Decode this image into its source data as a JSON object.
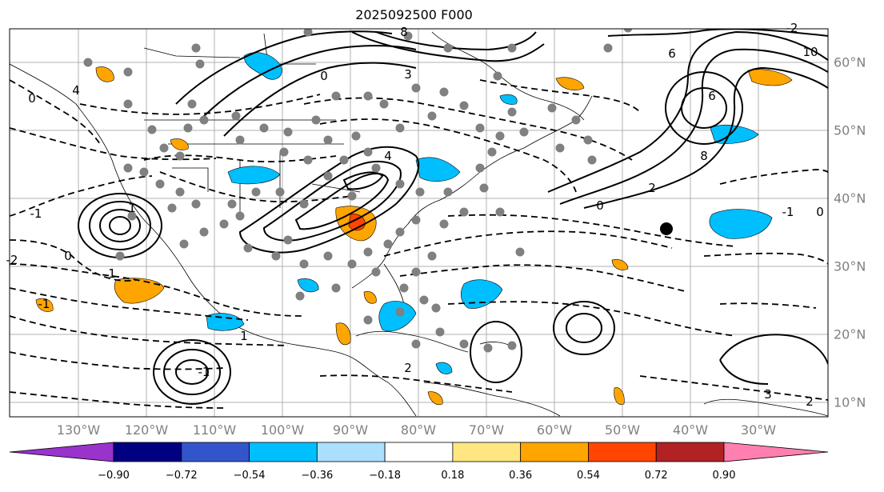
{
  "title": "2025092500 F000",
  "lon_labels": [
    "130°W",
    "120°W",
    "110°W",
    "100°W",
    "90°W",
    "80°W",
    "70°W",
    "60°W",
    "50°W",
    "40°W",
    "30°W"
  ],
  "lat_labels": [
    "60°N",
    "50°N",
    "40°N",
    "30°N",
    "20°N",
    "10°N"
  ],
  "colorbar": {
    "ticks": [
      "−0.90",
      "−0.72",
      "−0.54",
      "−0.36",
      "−0.18",
      "0.18",
      "0.36",
      "0.54",
      "0.72",
      "0.90"
    ],
    "colors": [
      "#9933cc",
      "#000080",
      "#3355cc",
      "#00bfff",
      "#aadfff",
      "#ffffff",
      "#ffe680",
      "#ffa500",
      "#ff4500",
      "#b22222",
      "#ff80b0"
    ]
  },
  "contour_labels": [
    "8",
    "6",
    "3",
    "4",
    "0",
    "-1",
    "-2",
    "10",
    "6",
    "8",
    "2",
    "1",
    "-1",
    "0",
    "1",
    "-1",
    "-2",
    "0",
    "1",
    "2",
    "3",
    "2",
    "0",
    "-1",
    "0",
    "4"
  ]
}
